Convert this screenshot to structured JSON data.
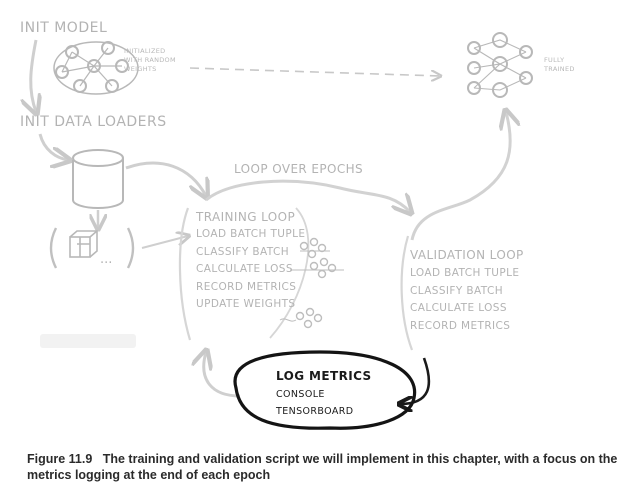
{
  "diagram": {
    "init_model": "INIT MODEL",
    "init_model_note": [
      "INITIALIZED",
      "WITH RANDOM",
      "WEIGHTS"
    ],
    "fully_trained_note": [
      "FULLY",
      "TRAINED"
    ],
    "init_data_loaders": "INIT DATA LOADERS",
    "batch_tuple_ellipsis": "...",
    "loop_over_epochs": "LOOP OVER EPOCHS",
    "training_loop": {
      "title": "TRAINING LOOP",
      "steps": [
        "LOAD BATCH TUPLE",
        "CLASSIFY BATCH",
        "CALCULATE LOSS",
        "RECORD METRICS",
        "UPDATE WEIGHTS"
      ]
    },
    "validation_loop": {
      "title": "VALIDATION LOOP",
      "steps": [
        "LOAD BATCH TUPLE",
        "CLASSIFY BATCH",
        "CALCULATE LOSS",
        "RECORD METRICS"
      ]
    },
    "log_metrics": {
      "title": "LOG METRICS",
      "items": [
        "CONSOLE",
        "TENSORBOARD"
      ]
    },
    "colors": {
      "faded": "#b3b3b3",
      "highlight": "#1a1a1a"
    }
  },
  "caption": {
    "label": "Figure 11.9",
    "text": "The training and validation script we will implement in this chapter, with a focus on the metrics logging at the end of each epoch"
  }
}
